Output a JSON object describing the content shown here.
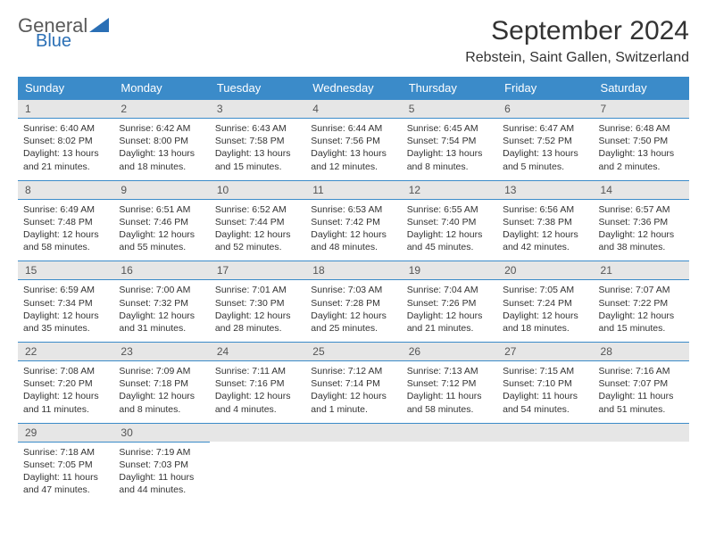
{
  "brand": {
    "general": "General",
    "blue": "Blue"
  },
  "title": "September 2024",
  "location": "Rebstein, Saint Gallen, Switzerland",
  "colors": {
    "header_bg": "#3b8bc9",
    "header_fg": "#ffffff",
    "daynum_bg": "#e6e6e6",
    "rule": "#3b8bc9",
    "text": "#333333",
    "logo_gray": "#5a5a5a",
    "logo_blue": "#2a6fb5"
  },
  "weekdays": [
    "Sunday",
    "Monday",
    "Tuesday",
    "Wednesday",
    "Thursday",
    "Friday",
    "Saturday"
  ],
  "weeks": [
    [
      {
        "n": "1",
        "sr": "6:40 AM",
        "ss": "8:02 PM",
        "dl": "13 hours and 21 minutes."
      },
      {
        "n": "2",
        "sr": "6:42 AM",
        "ss": "8:00 PM",
        "dl": "13 hours and 18 minutes."
      },
      {
        "n": "3",
        "sr": "6:43 AM",
        "ss": "7:58 PM",
        "dl": "13 hours and 15 minutes."
      },
      {
        "n": "4",
        "sr": "6:44 AM",
        "ss": "7:56 PM",
        "dl": "13 hours and 12 minutes."
      },
      {
        "n": "5",
        "sr": "6:45 AM",
        "ss": "7:54 PM",
        "dl": "13 hours and 8 minutes."
      },
      {
        "n": "6",
        "sr": "6:47 AM",
        "ss": "7:52 PM",
        "dl": "13 hours and 5 minutes."
      },
      {
        "n": "7",
        "sr": "6:48 AM",
        "ss": "7:50 PM",
        "dl": "13 hours and 2 minutes."
      }
    ],
    [
      {
        "n": "8",
        "sr": "6:49 AM",
        "ss": "7:48 PM",
        "dl": "12 hours and 58 minutes."
      },
      {
        "n": "9",
        "sr": "6:51 AM",
        "ss": "7:46 PM",
        "dl": "12 hours and 55 minutes."
      },
      {
        "n": "10",
        "sr": "6:52 AM",
        "ss": "7:44 PM",
        "dl": "12 hours and 52 minutes."
      },
      {
        "n": "11",
        "sr": "6:53 AM",
        "ss": "7:42 PM",
        "dl": "12 hours and 48 minutes."
      },
      {
        "n": "12",
        "sr": "6:55 AM",
        "ss": "7:40 PM",
        "dl": "12 hours and 45 minutes."
      },
      {
        "n": "13",
        "sr": "6:56 AM",
        "ss": "7:38 PM",
        "dl": "12 hours and 42 minutes."
      },
      {
        "n": "14",
        "sr": "6:57 AM",
        "ss": "7:36 PM",
        "dl": "12 hours and 38 minutes."
      }
    ],
    [
      {
        "n": "15",
        "sr": "6:59 AM",
        "ss": "7:34 PM",
        "dl": "12 hours and 35 minutes."
      },
      {
        "n": "16",
        "sr": "7:00 AM",
        "ss": "7:32 PM",
        "dl": "12 hours and 31 minutes."
      },
      {
        "n": "17",
        "sr": "7:01 AM",
        "ss": "7:30 PM",
        "dl": "12 hours and 28 minutes."
      },
      {
        "n": "18",
        "sr": "7:03 AM",
        "ss": "7:28 PM",
        "dl": "12 hours and 25 minutes."
      },
      {
        "n": "19",
        "sr": "7:04 AM",
        "ss": "7:26 PM",
        "dl": "12 hours and 21 minutes."
      },
      {
        "n": "20",
        "sr": "7:05 AM",
        "ss": "7:24 PM",
        "dl": "12 hours and 18 minutes."
      },
      {
        "n": "21",
        "sr": "7:07 AM",
        "ss": "7:22 PM",
        "dl": "12 hours and 15 minutes."
      }
    ],
    [
      {
        "n": "22",
        "sr": "7:08 AM",
        "ss": "7:20 PM",
        "dl": "12 hours and 11 minutes."
      },
      {
        "n": "23",
        "sr": "7:09 AM",
        "ss": "7:18 PM",
        "dl": "12 hours and 8 minutes."
      },
      {
        "n": "24",
        "sr": "7:11 AM",
        "ss": "7:16 PM",
        "dl": "12 hours and 4 minutes."
      },
      {
        "n": "25",
        "sr": "7:12 AM",
        "ss": "7:14 PM",
        "dl": "12 hours and 1 minute."
      },
      {
        "n": "26",
        "sr": "7:13 AM",
        "ss": "7:12 PM",
        "dl": "11 hours and 58 minutes."
      },
      {
        "n": "27",
        "sr": "7:15 AM",
        "ss": "7:10 PM",
        "dl": "11 hours and 54 minutes."
      },
      {
        "n": "28",
        "sr": "7:16 AM",
        "ss": "7:07 PM",
        "dl": "11 hours and 51 minutes."
      }
    ],
    [
      {
        "n": "29",
        "sr": "7:18 AM",
        "ss": "7:05 PM",
        "dl": "11 hours and 47 minutes."
      },
      {
        "n": "30",
        "sr": "7:19 AM",
        "ss": "7:03 PM",
        "dl": "11 hours and 44 minutes."
      },
      null,
      null,
      null,
      null,
      null
    ]
  ],
  "labels": {
    "sunrise": "Sunrise: ",
    "sunset": "Sunset: ",
    "daylight": "Daylight: "
  }
}
